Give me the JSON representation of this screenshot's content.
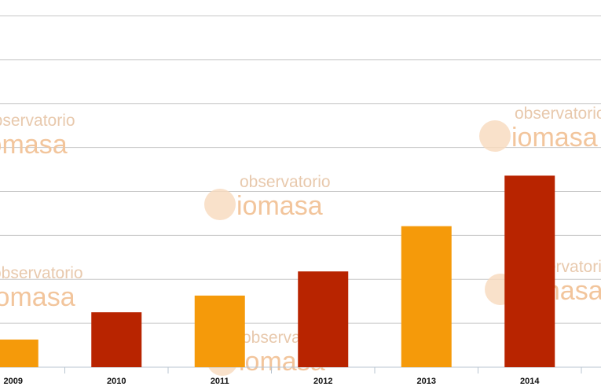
{
  "chart_data": {
    "type": "bar",
    "categories": [
      "2009",
      "2010",
      "2011",
      "2012",
      "2013",
      "2014"
    ],
    "values": [
      0.63,
      1.25,
      1.63,
      2.18,
      3.21,
      4.36
    ],
    "colors": [
      "#f59a0a",
      "#b82400",
      "#f59a0a",
      "#b82400",
      "#f59a0a",
      "#b82400"
    ],
    "ylim": [
      0,
      8
    ],
    "yticks": [
      0,
      1,
      2,
      3,
      4,
      5,
      6,
      7,
      8
    ],
    "grid": true,
    "watermark": {
      "top": "observatorio",
      "bottom": "iomasa"
    }
  }
}
